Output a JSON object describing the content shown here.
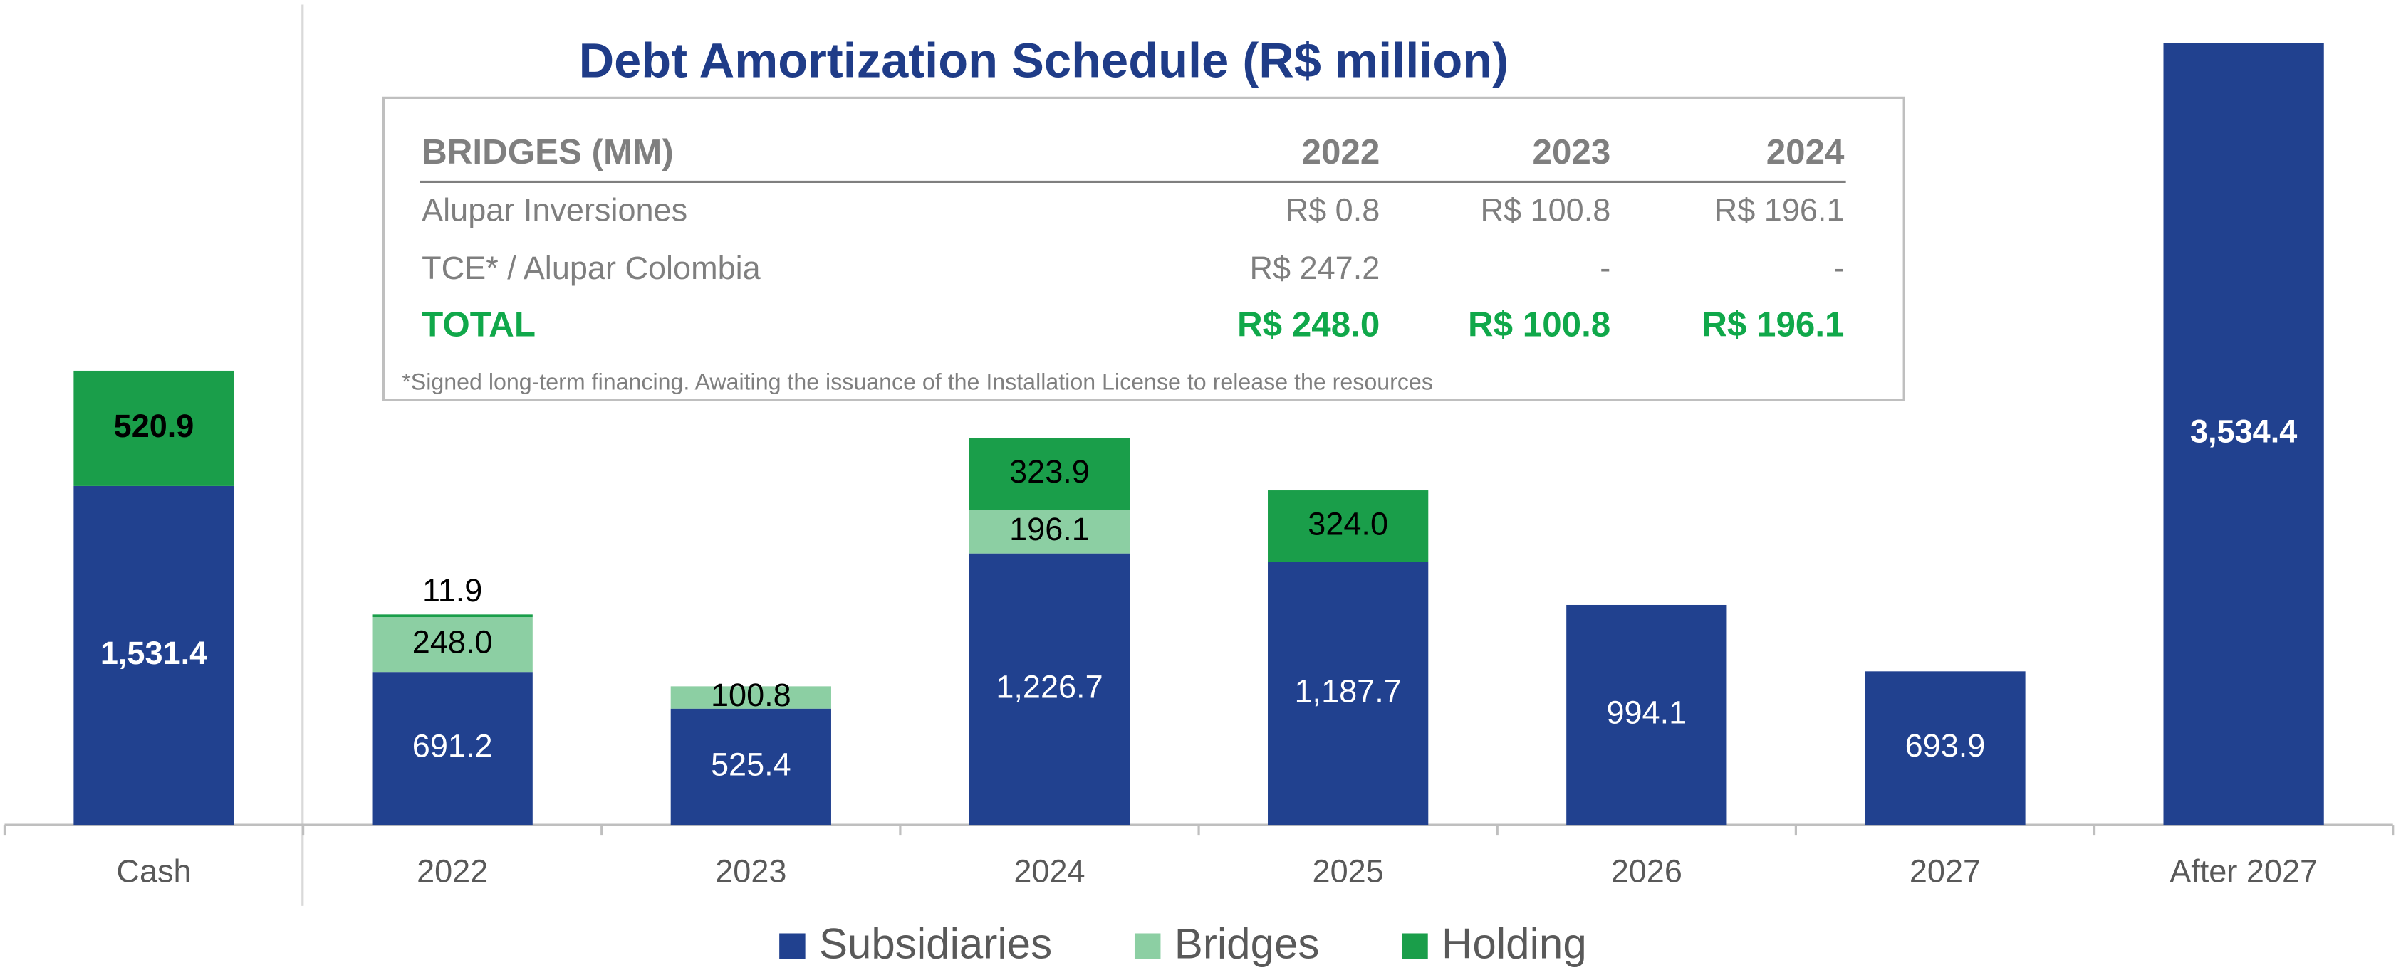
{
  "chart_data": {
    "type": "stacked_bar",
    "title": "Debt Amortization Schedule (R$ million)",
    "categories": [
      "Cash",
      "2022",
      "2023",
      "2024",
      "2025",
      "2026",
      "2027",
      "After 2027"
    ],
    "series": [
      {
        "name": "Subsidiaries",
        "color": "#21418f",
        "values": [
          1531.4,
          691.2,
          525.4,
          1226.7,
          1187.7,
          994.1,
          693.9,
          3534.4
        ],
        "value_labels": [
          "1,531.4",
          "691.2",
          "525.4",
          "1,226.7",
          "1,187.7",
          "994.1",
          "693.9",
          "3,534.4"
        ]
      },
      {
        "name": "Bridges",
        "color": "#8ccfa3",
        "values": [
          null,
          248.0,
          100.8,
          196.1,
          null,
          null,
          null,
          null
        ],
        "value_labels": [
          null,
          "248.0",
          "100.8",
          "196.1",
          null,
          null,
          null,
          null
        ]
      },
      {
        "name": "Holding",
        "color": "#1a9e4a",
        "values": [
          520.9,
          11.9,
          null,
          323.9,
          324.0,
          null,
          null,
          null
        ],
        "value_labels": [
          "520.9",
          "11.9",
          null,
          "323.9",
          "324.0",
          null,
          null,
          null
        ]
      }
    ],
    "legend": "bottom"
  },
  "table": {
    "header": [
      "BRIDGES (MM)",
      "2022",
      "2023",
      "2024"
    ],
    "rows": [
      [
        "Alupar  Inversiones",
        "R$ 0.8",
        "R$ 100.8",
        "R$ 196.1"
      ],
      [
        "TCE* / Alupar Colombia",
        "R$ 247.2",
        "-",
        "-"
      ]
    ],
    "total": [
      "TOTAL",
      "R$ 248.0",
      "R$ 100.8",
      "R$ 196.1"
    ],
    "footnote": "*Signed long-term financing. Awaiting the issuance of the Installation License to release the resources"
  }
}
